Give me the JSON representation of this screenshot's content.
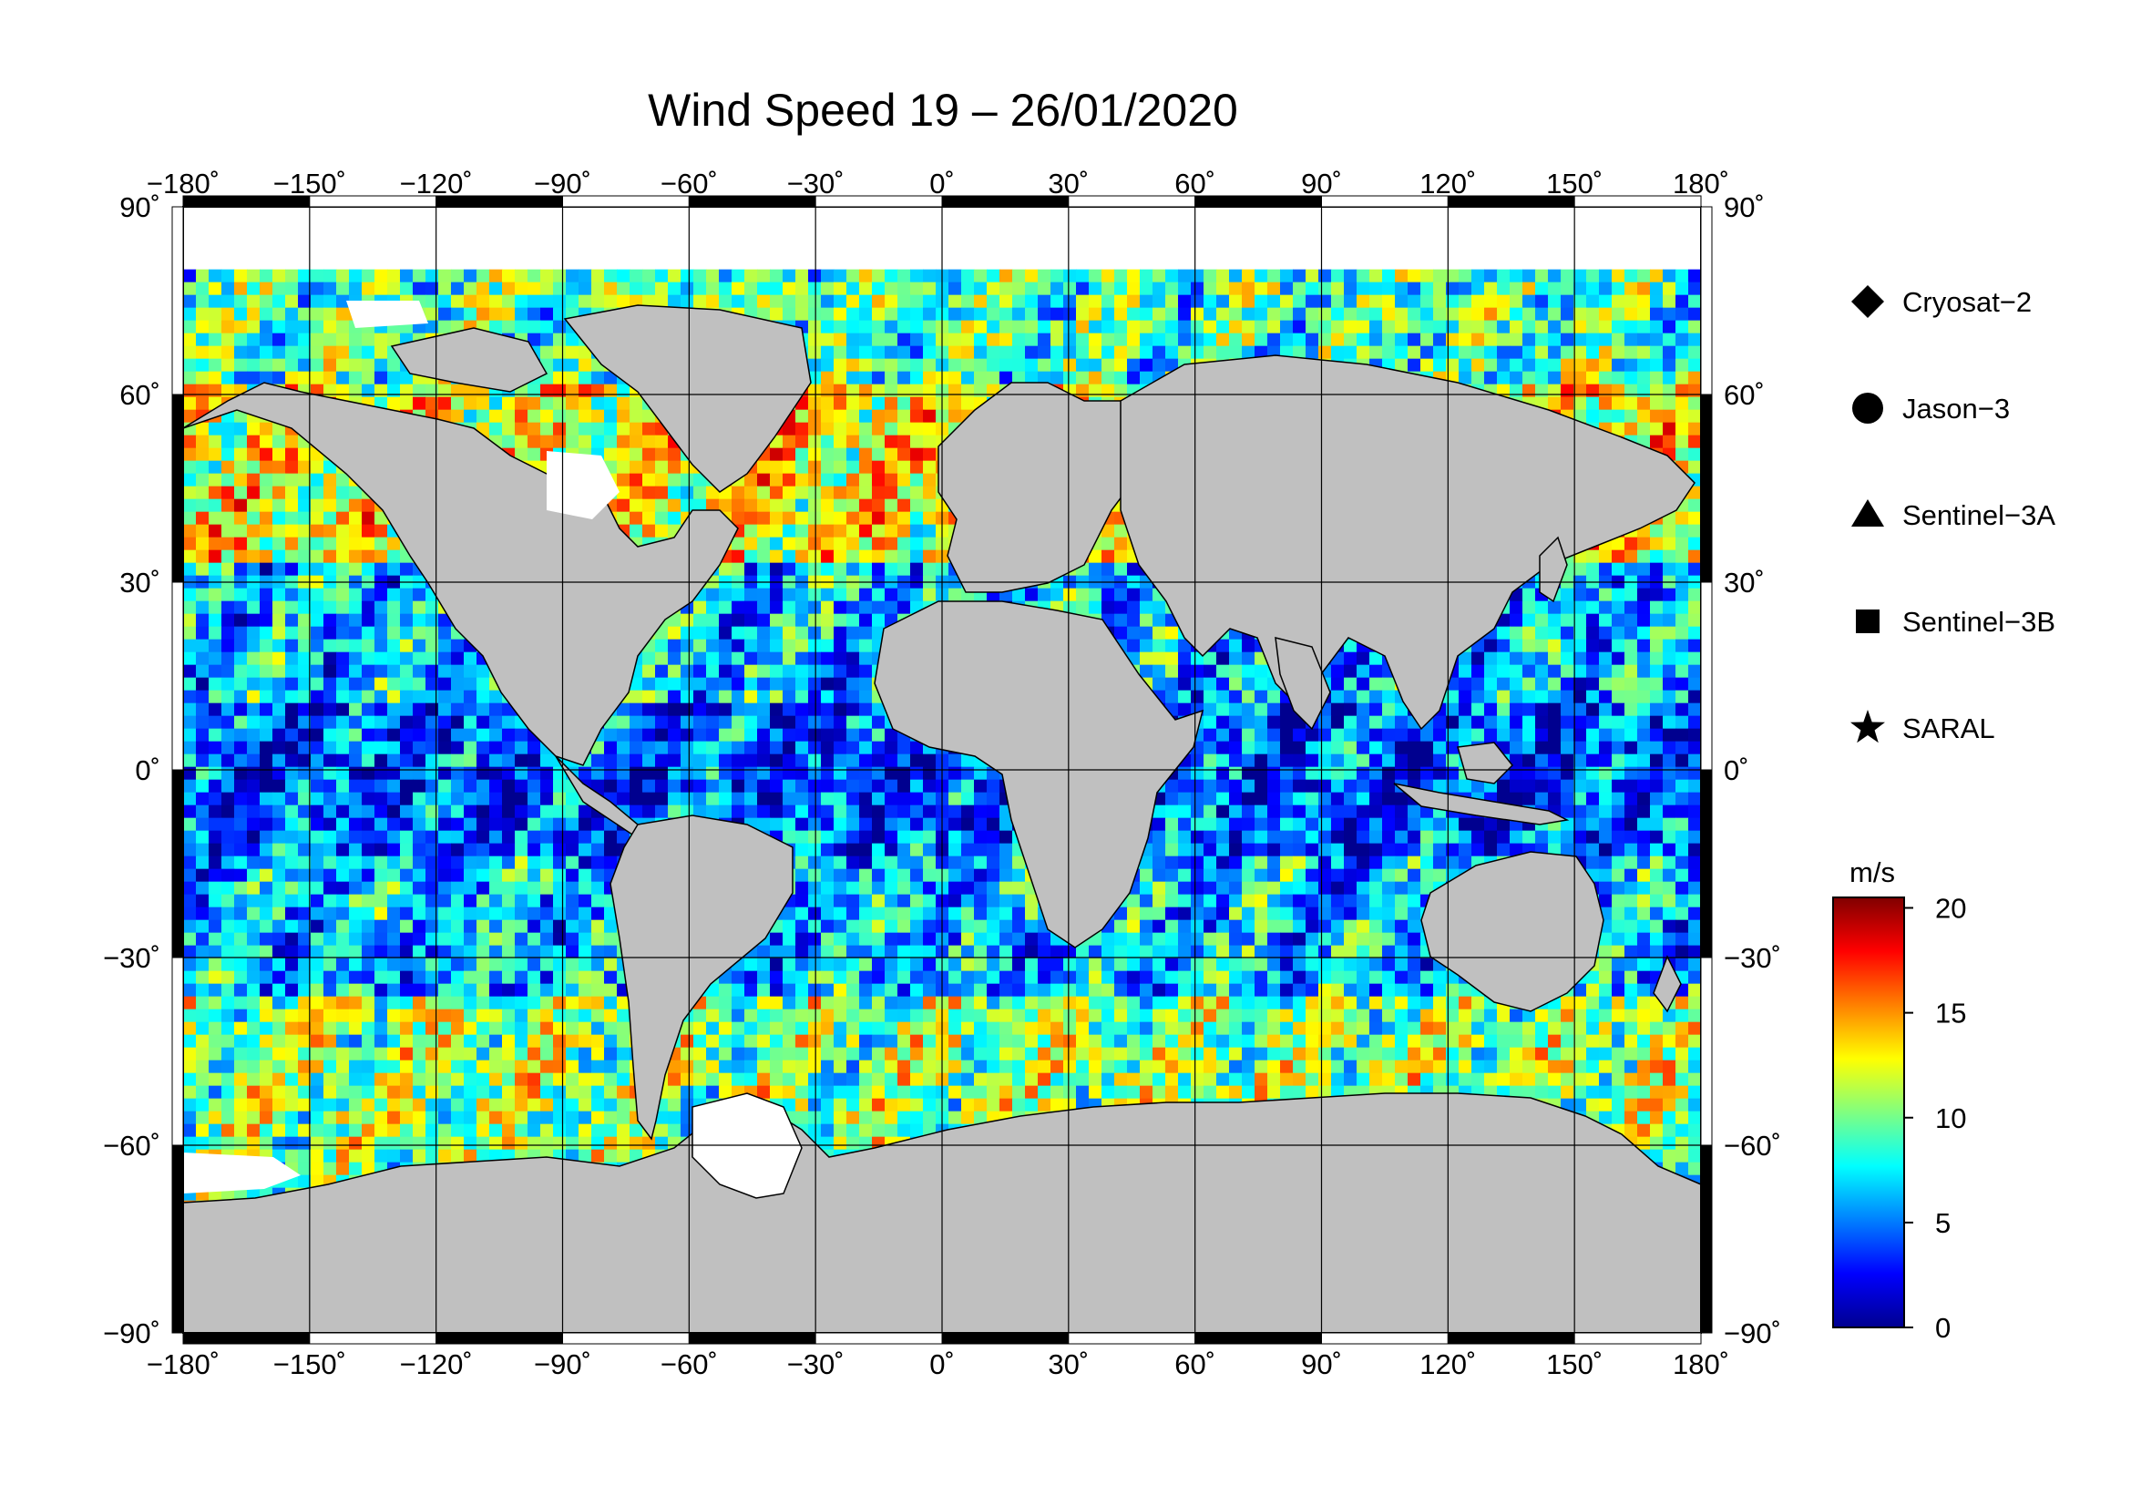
{
  "title": "Wind Speed 19 – 26/01/2020",
  "map": {
    "projection": "equirectangular",
    "lon_range": [
      -180,
      180
    ],
    "lat_range": [
      -90,
      90
    ],
    "lon_ticks": [
      {
        "value": -180,
        "label": "−180˚"
      },
      {
        "value": -150,
        "label": "−150˚"
      },
      {
        "value": -120,
        "label": "−120˚"
      },
      {
        "value": -90,
        "label": "−90˚"
      },
      {
        "value": -60,
        "label": "−60˚"
      },
      {
        "value": -30,
        "label": "−30˚"
      },
      {
        "value": 0,
        "label": "0˚"
      },
      {
        "value": 30,
        "label": "30˚"
      },
      {
        "value": 60,
        "label": "60˚"
      },
      {
        "value": 90,
        "label": "90˚"
      },
      {
        "value": 120,
        "label": "120˚"
      },
      {
        "value": 150,
        "label": "150˚"
      },
      {
        "value": 180,
        "label": "180˚"
      }
    ],
    "lat_ticks": [
      {
        "value": 90,
        "label": "90˚"
      },
      {
        "value": 60,
        "label": "60˚"
      },
      {
        "value": 30,
        "label": "30˚"
      },
      {
        "value": 0,
        "label": "0˚"
      },
      {
        "value": -30,
        "label": "−30˚"
      },
      {
        "value": -60,
        "label": "−60˚"
      },
      {
        "value": -90,
        "label": "−90˚"
      }
    ],
    "land_color": "#c0c0c0",
    "ice_color": "#ffffff"
  },
  "legend": {
    "items": [
      {
        "label": "Cryosat−2",
        "symbol": "diamond"
      },
      {
        "label": "Jason−3",
        "symbol": "circle"
      },
      {
        "label": "Sentinel−3A",
        "symbol": "triangle"
      },
      {
        "label": "Sentinel−3B",
        "symbol": "square"
      },
      {
        "label": "SARAL",
        "symbol": "star"
      }
    ]
  },
  "colorbar": {
    "unit": "m/s",
    "min": 0,
    "max": 20.5,
    "ticks": [
      {
        "value": 0,
        "label": "0"
      },
      {
        "value": 5,
        "label": "5"
      },
      {
        "value": 10,
        "label": "10"
      },
      {
        "value": 15,
        "label": "15"
      },
      {
        "value": 20,
        "label": "20"
      }
    ],
    "colormap": [
      "#00008f",
      "#0000ff",
      "#0080ff",
      "#00ffff",
      "#80ff80",
      "#ffff00",
      "#ff8000",
      "#ff0000",
      "#800000"
    ]
  }
}
